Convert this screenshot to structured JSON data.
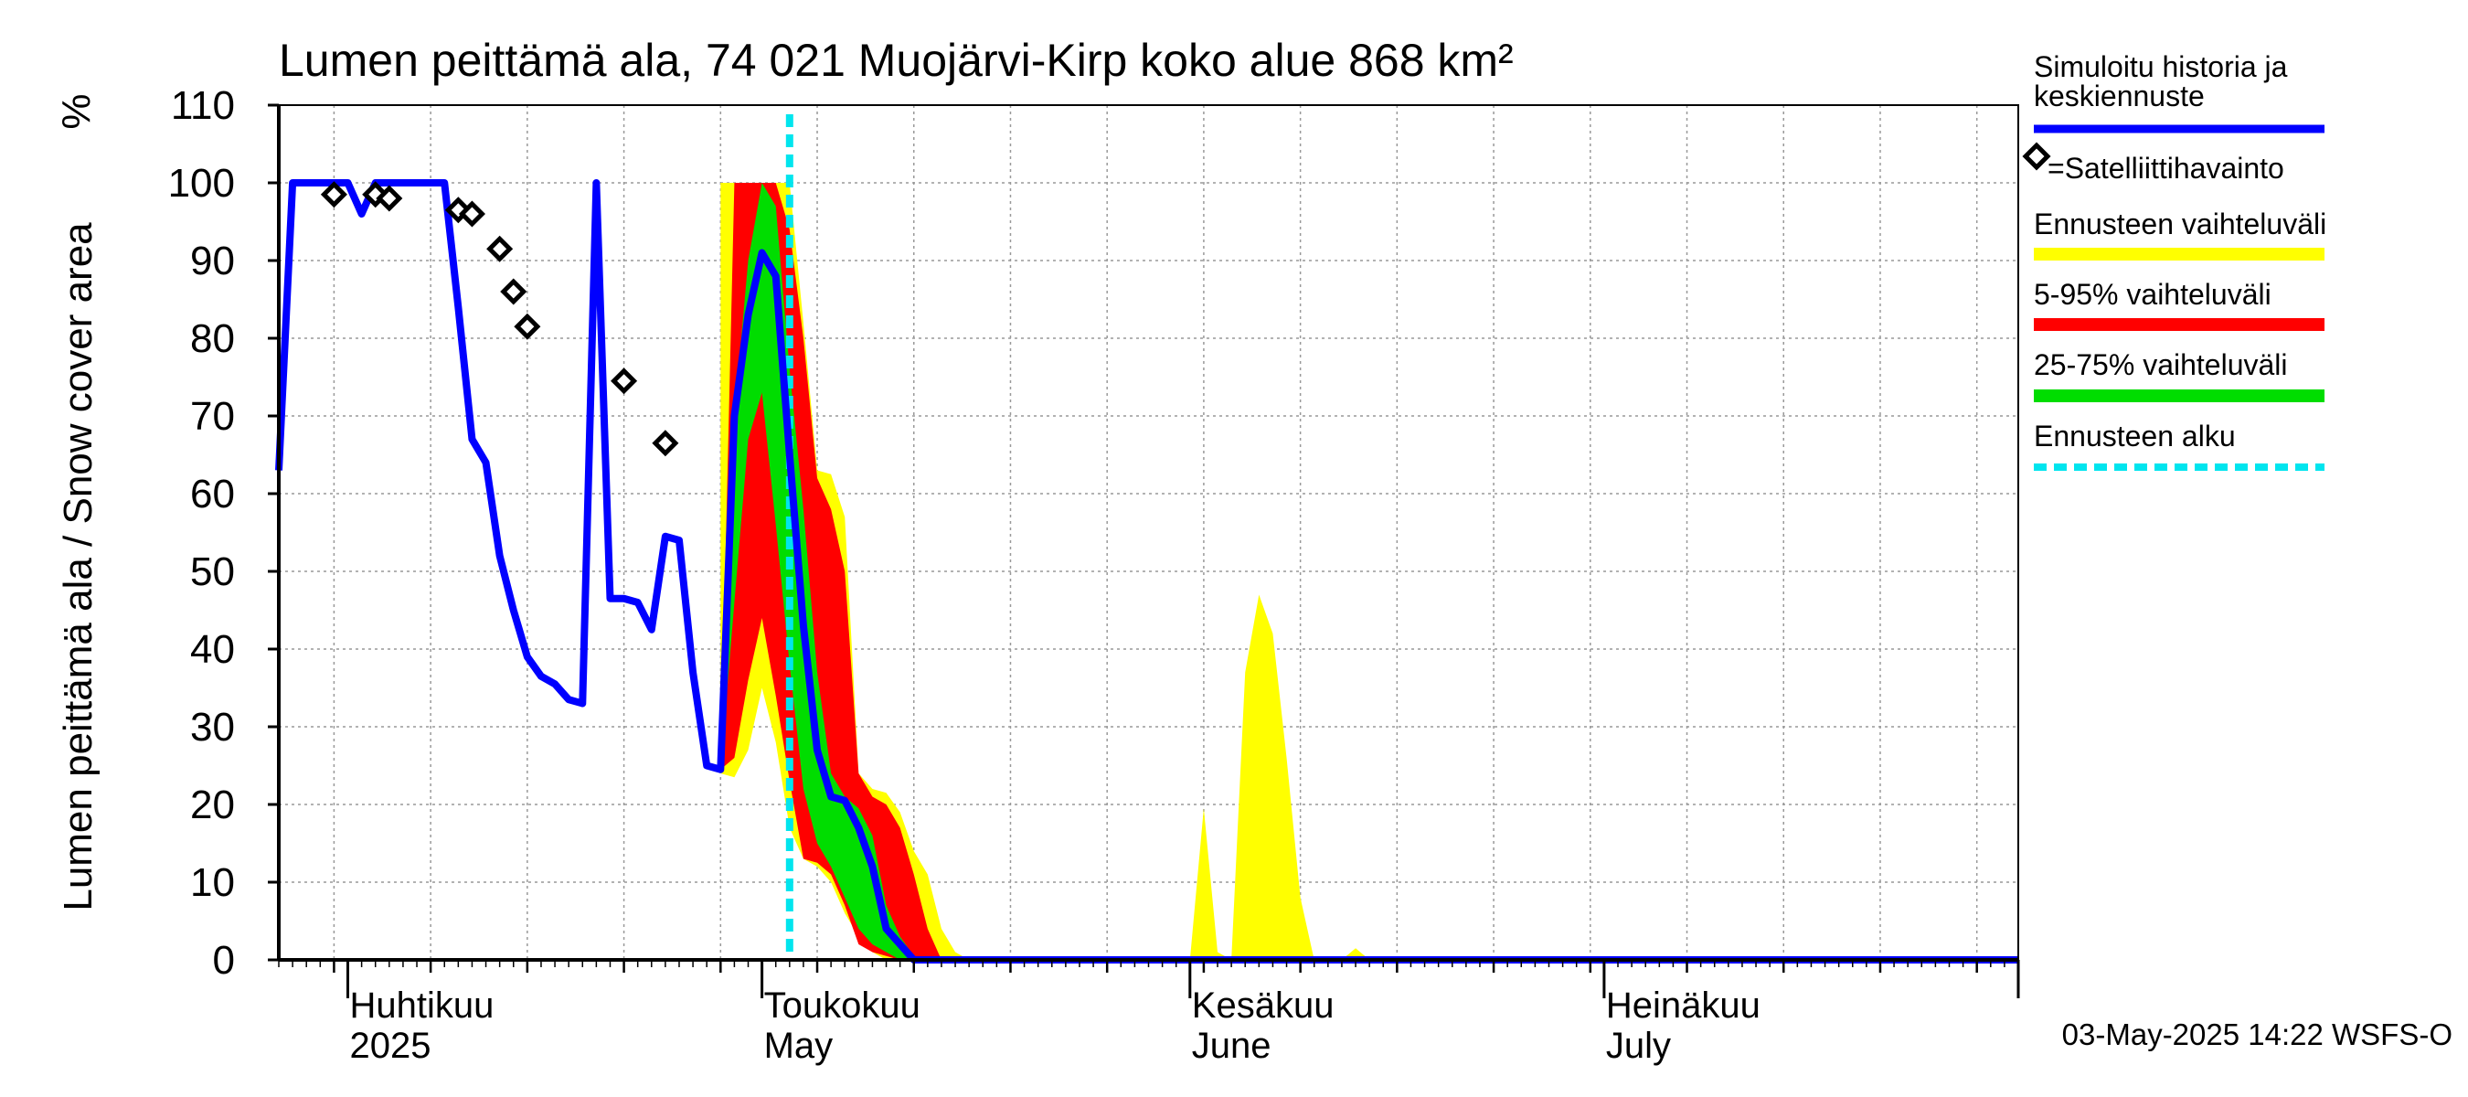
{
  "chart_data": {
    "type": "area",
    "title": "Lumen peittämä ala, 74 021 Muojärvi-Kirp koko alue 868 km²",
    "ylabel": "Lumen peittämä ala / Snow cover area",
    "yunit": "%",
    "ylim": [
      0,
      110
    ],
    "yticks": [
      0,
      10,
      20,
      30,
      40,
      50,
      60,
      70,
      80,
      90,
      100,
      110
    ],
    "x_start": "2025-03-27",
    "x_end": "2025-07-31",
    "forecast_start": "2025-05-03",
    "grid": true,
    "month_labels": [
      {
        "date": "2025-04-01",
        "line1": "Huhtikuu",
        "line2": "2025"
      },
      {
        "date": "2025-05-01",
        "line1": "Toukokuu",
        "line2": "May"
      },
      {
        "date": "2025-06-01",
        "line1": "Kesäkuu",
        "line2": "June"
      },
      {
        "date": "2025-07-01",
        "line1": "Heinäkuu",
        "line2": "July"
      }
    ],
    "footer": "03-May-2025 14:22 WSFS-O",
    "legend": [
      {
        "key": "sim",
        "label": "Simuloitu historia ja keskiennuste",
        "color": "#0000ff",
        "style": "line"
      },
      {
        "key": "sat",
        "label": "=Satelliittihavainto",
        "color": "#000000",
        "style": "marker"
      },
      {
        "key": "range",
        "label": "Ennusteen vaihteluväli",
        "color": "#ffff00",
        "style": "line"
      },
      {
        "key": "p5_95",
        "label": "5-95% vaihteluväli",
        "color": "#ff0000",
        "style": "line"
      },
      {
        "key": "p25_75",
        "label": "25-75% vaihteluväli",
        "color": "#00dd00",
        "style": "line"
      },
      {
        "key": "fstart",
        "label": "Ennusteen alku",
        "color": "#00e5ee",
        "style": "dashed"
      }
    ],
    "simulated": [
      [
        "2025-03-27",
        63
      ],
      [
        "2025-03-28",
        100
      ],
      [
        "2025-03-29",
        100
      ],
      [
        "2025-03-30",
        100
      ],
      [
        "2025-03-31",
        100
      ],
      [
        "2025-04-01",
        100
      ],
      [
        "2025-04-02",
        96
      ],
      [
        "2025-04-03",
        100
      ],
      [
        "2025-04-04",
        100
      ],
      [
        "2025-04-05",
        100
      ],
      [
        "2025-04-06",
        100
      ],
      [
        "2025-04-07",
        100
      ],
      [
        "2025-04-08",
        100
      ],
      [
        "2025-04-09",
        84
      ],
      [
        "2025-04-10",
        67
      ],
      [
        "2025-04-11",
        64
      ],
      [
        "2025-04-12",
        52
      ],
      [
        "2025-04-13",
        45
      ],
      [
        "2025-04-14",
        39
      ],
      [
        "2025-04-15",
        36.5
      ],
      [
        "2025-04-16",
        35.5
      ],
      [
        "2025-04-17",
        33.5
      ],
      [
        "2025-04-18",
        33
      ],
      [
        "2025-04-19",
        100
      ],
      [
        "2025-04-20",
        46.5
      ],
      [
        "2025-04-21",
        46.5
      ],
      [
        "2025-04-22",
        46
      ],
      [
        "2025-04-23",
        42.5
      ],
      [
        "2025-04-24",
        54.5
      ],
      [
        "2025-04-25",
        54
      ],
      [
        "2025-04-26",
        37
      ],
      [
        "2025-04-27",
        25
      ],
      [
        "2025-04-28",
        24.5
      ],
      [
        "2025-04-29",
        70
      ],
      [
        "2025-04-30",
        83
      ],
      [
        "2025-05-01",
        91
      ],
      [
        "2025-05-02",
        88
      ],
      [
        "2025-05-03",
        65
      ],
      [
        "2025-05-04",
        43
      ],
      [
        "2025-05-05",
        27
      ],
      [
        "2025-05-06",
        21
      ],
      [
        "2025-05-07",
        20.5
      ],
      [
        "2025-05-08",
        17
      ],
      [
        "2025-05-09",
        12
      ],
      [
        "2025-05-10",
        4
      ],
      [
        "2025-05-11",
        2
      ],
      [
        "2025-05-12",
        0
      ],
      [
        "2025-07-31",
        0
      ]
    ],
    "satellite": [
      [
        "2025-03-31",
        98.5
      ],
      [
        "2025-04-03",
        98.5
      ],
      [
        "2025-04-04",
        98
      ],
      [
        "2025-04-09",
        96.5
      ],
      [
        "2025-04-10",
        96
      ],
      [
        "2025-04-12",
        91.5
      ],
      [
        "2025-04-13",
        86
      ],
      [
        "2025-04-14",
        81.5
      ],
      [
        "2025-04-21",
        74.5
      ],
      [
        "2025-04-24",
        66.5
      ]
    ],
    "band_full": [
      [
        "2025-04-28",
        100,
        24
      ],
      [
        "2025-04-29",
        100,
        23.5
      ],
      [
        "2025-04-30",
        100,
        27
      ],
      [
        "2025-05-01",
        100,
        35
      ],
      [
        "2025-05-02",
        100,
        28
      ],
      [
        "2025-05-03",
        100,
        17
      ],
      [
        "2025-05-04",
        82,
        13
      ],
      [
        "2025-05-05",
        63,
        12
      ],
      [
        "2025-05-06",
        62.5,
        10
      ],
      [
        "2025-05-07",
        57,
        6
      ],
      [
        "2025-05-08",
        24,
        3
      ],
      [
        "2025-05-09",
        22,
        1
      ],
      [
        "2025-05-10",
        21.5,
        0
      ],
      [
        "2025-05-11",
        19,
        0
      ],
      [
        "2025-05-12",
        14,
        0
      ],
      [
        "2025-05-13",
        11,
        0
      ],
      [
        "2025-05-14",
        4,
        0
      ],
      [
        "2025-05-15",
        1,
        0
      ],
      [
        "2025-05-16",
        0,
        0
      ],
      [
        "2025-06-01",
        0,
        0
      ],
      [
        "2025-06-02",
        19.5,
        0
      ],
      [
        "2025-06-03",
        1,
        0
      ],
      [
        "2025-06-04",
        0,
        0
      ],
      [
        "2025-06-05",
        37,
        0
      ],
      [
        "2025-06-06",
        47,
        0
      ],
      [
        "2025-06-07",
        42,
        0
      ],
      [
        "2025-06-08",
        26,
        0
      ],
      [
        "2025-06-09",
        8,
        0
      ],
      [
        "2025-06-10",
        0,
        0
      ],
      [
        "2025-06-12",
        0,
        0
      ],
      [
        "2025-06-13",
        1.5,
        0
      ],
      [
        "2025-06-14",
        0,
        0
      ]
    ],
    "band_5_95": [
      [
        "2025-04-28",
        25,
        24.5
      ],
      [
        "2025-04-29",
        100,
        26
      ],
      [
        "2025-04-30",
        100,
        36
      ],
      [
        "2025-05-01",
        100,
        44
      ],
      [
        "2025-05-02",
        100,
        34
      ],
      [
        "2025-05-03",
        94,
        23
      ],
      [
        "2025-05-04",
        80,
        13
      ],
      [
        "2025-05-05",
        62,
        12.5
      ],
      [
        "2025-05-06",
        58,
        11
      ],
      [
        "2025-05-07",
        50,
        7
      ],
      [
        "2025-05-08",
        24,
        2
      ],
      [
        "2025-05-09",
        21,
        1
      ],
      [
        "2025-05-10",
        20,
        0.5
      ],
      [
        "2025-05-11",
        17,
        0
      ],
      [
        "2025-05-12",
        11,
        0
      ],
      [
        "2025-05-13",
        4,
        0
      ],
      [
        "2025-05-14",
        0,
        0
      ]
    ],
    "band_25_75": [
      [
        "2025-04-28",
        25,
        24.5
      ],
      [
        "2025-04-29",
        70,
        46
      ],
      [
        "2025-04-30",
        90,
        67
      ],
      [
        "2025-05-01",
        100,
        73
      ],
      [
        "2025-05-02",
        97,
        56
      ],
      [
        "2025-05-03",
        76,
        38
      ],
      [
        "2025-05-04",
        58,
        22
      ],
      [
        "2025-05-05",
        37,
        15
      ],
      [
        "2025-05-06",
        24,
        12
      ],
      [
        "2025-05-07",
        21,
        8
      ],
      [
        "2025-05-08",
        19.5,
        4
      ],
      [
        "2025-05-09",
        16,
        2
      ],
      [
        "2025-05-10",
        7,
        1
      ],
      [
        "2025-05-11",
        3,
        0
      ],
      [
        "2025-05-12",
        0.5,
        0
      ],
      [
        "2025-05-13",
        0,
        0
      ]
    ]
  }
}
